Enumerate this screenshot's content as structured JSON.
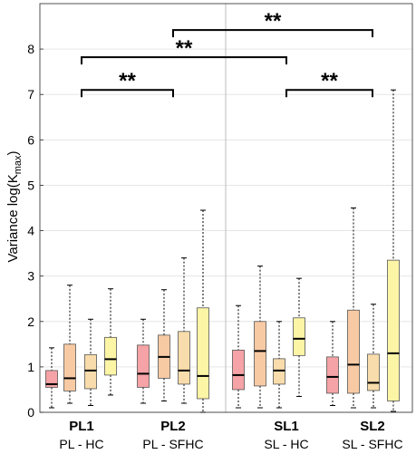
{
  "chart_data": {
    "type": "box",
    "ylabel": "Variance log(K",
    "ylabel_sub": "max",
    "ylabel_close": ")",
    "ylim": [
      0,
      9
    ],
    "yticks": [
      0,
      1,
      2,
      3,
      4,
      5,
      6,
      7,
      8
    ],
    "grid": true,
    "groups": [
      {
        "label": "PL1",
        "sublabel": "PL - HC"
      },
      {
        "label": "PL2",
        "sublabel": "PL - SFHC"
      },
      {
        "label": "SL1",
        "sublabel": "SL - HC"
      },
      {
        "label": "SL2",
        "sublabel": "SL - SFHC"
      }
    ],
    "box_colors": [
      "#f5a3a6",
      "#f8caa4",
      "#f9dcab",
      "#fdf5a6"
    ],
    "boxes": [
      {
        "group": 0,
        "slot": 0,
        "whisker_low": 0.1,
        "q1": 0.55,
        "median": 0.62,
        "q3": 0.92,
        "whisker_high": 1.42
      },
      {
        "group": 0,
        "slot": 1,
        "whisker_low": 0.2,
        "q1": 0.47,
        "median": 0.75,
        "q3": 1.5,
        "whisker_high": 2.8
      },
      {
        "group": 0,
        "slot": 2,
        "whisker_low": 0.15,
        "q1": 0.52,
        "median": 0.92,
        "q3": 1.27,
        "whisker_high": 2.05
      },
      {
        "group": 0,
        "slot": 3,
        "whisker_low": 0.38,
        "q1": 0.82,
        "median": 1.17,
        "q3": 1.65,
        "whisker_high": 2.72
      },
      {
        "group": 1,
        "slot": 0,
        "whisker_low": 0.2,
        "q1": 0.55,
        "median": 0.85,
        "q3": 1.48,
        "whisker_high": 2.05
      },
      {
        "group": 1,
        "slot": 1,
        "whisker_low": 0.25,
        "q1": 0.75,
        "median": 1.22,
        "q3": 1.7,
        "whisker_high": 2.7
      },
      {
        "group": 1,
        "slot": 2,
        "whisker_low": 0.2,
        "q1": 0.62,
        "median": 0.92,
        "q3": 1.78,
        "whisker_high": 3.4
      },
      {
        "group": 1,
        "slot": 3,
        "whisker_low": 0.0,
        "q1": 0.3,
        "median": 0.8,
        "q3": 2.3,
        "whisker_high": 4.45
      },
      {
        "group": 2,
        "slot": 0,
        "whisker_low": 0.1,
        "q1": 0.5,
        "median": 0.82,
        "q3": 1.37,
        "whisker_high": 2.35
      },
      {
        "group": 2,
        "slot": 1,
        "whisker_low": 0.1,
        "q1": 0.58,
        "median": 1.35,
        "q3": 2.0,
        "whisker_high": 3.22
      },
      {
        "group": 2,
        "slot": 2,
        "whisker_low": 0.1,
        "q1": 0.62,
        "median": 0.92,
        "q3": 1.18,
        "whisker_high": 2.0
      },
      {
        "group": 2,
        "slot": 3,
        "whisker_low": 0.35,
        "q1": 1.25,
        "median": 1.62,
        "q3": 2.08,
        "whisker_high": 2.95
      },
      {
        "group": 3,
        "slot": 0,
        "whisker_low": 0.15,
        "q1": 0.42,
        "median": 0.78,
        "q3": 1.22,
        "whisker_high": 2.0
      },
      {
        "group": 3,
        "slot": 1,
        "whisker_low": 0.1,
        "q1": 0.42,
        "median": 1.05,
        "q3": 2.25,
        "whisker_high": 4.5
      },
      {
        "group": 3,
        "slot": 2,
        "whisker_low": 0.1,
        "q1": 0.48,
        "median": 0.65,
        "q3": 1.28,
        "whisker_high": 2.38
      },
      {
        "group": 3,
        "slot": 3,
        "whisker_low": 0.02,
        "q1": 0.25,
        "median": 1.3,
        "q3": 3.35,
        "whisker_high": 7.1
      }
    ],
    "significance": [
      {
        "from_group": 1,
        "to_group": 3,
        "y": 8.42,
        "label": "**"
      },
      {
        "from_group": 0,
        "to_group": 2,
        "y": 7.82,
        "label": "**"
      },
      {
        "from_group": 0,
        "to_group": 1,
        "y": 7.1,
        "label": "**"
      },
      {
        "from_group": 2,
        "to_group": 3,
        "y": 7.1,
        "label": "**"
      }
    ]
  }
}
